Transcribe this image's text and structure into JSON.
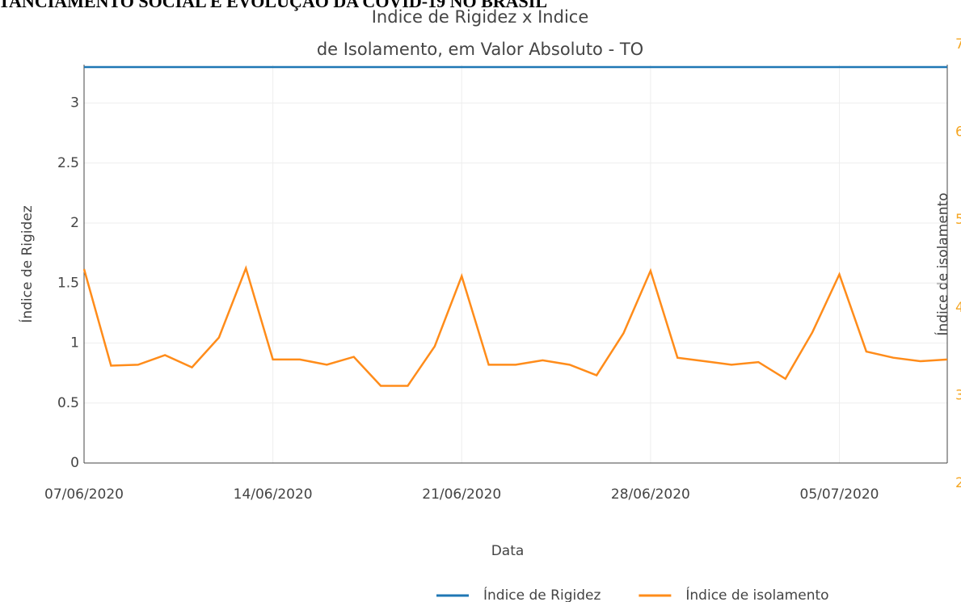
{
  "header": "TANCIAMENTO SOCIAL E EVOLUÇÃO DA COVID-19 NO BRASIL",
  "chart_data": {
    "type": "line",
    "title": [
      "Indice de Rigidez x Indice",
      "de Isolamento, em Valor Absoluto -  TO"
    ],
    "xlabel": "Data",
    "ylabel": "Índice de Rigidez",
    "y2label": "Índice de isolamento",
    "x": [
      "07/06/2020",
      "08/06/2020",
      "09/06/2020",
      "10/06/2020",
      "11/06/2020",
      "12/06/2020",
      "13/06/2020",
      "14/06/2020",
      "15/06/2020",
      "16/06/2020",
      "17/06/2020",
      "18/06/2020",
      "19/06/2020",
      "20/06/2020",
      "21/06/2020",
      "22/06/2020",
      "23/06/2020",
      "24/06/2020",
      "25/06/2020",
      "26/06/2020",
      "27/06/2020",
      "28/06/2020",
      "29/06/2020",
      "30/06/2020",
      "01/07/2020",
      "02/07/2020",
      "03/07/2020",
      "04/07/2020",
      "05/07/2020",
      "06/07/2020",
      "07/07/2020",
      "08/07/2020",
      "09/07/2020"
    ],
    "xticks": [
      "07/06/2020",
      "14/06/2020",
      "21/06/2020",
      "28/06/2020",
      "05/07/2020"
    ],
    "series": [
      {
        "name": "Índice de Rigidez",
        "color": "#1f77b4",
        "values": [
          3.3,
          3.3,
          3.3,
          3.3,
          3.3,
          3.3,
          3.3,
          3.3,
          3.3,
          3.3,
          3.3,
          3.3,
          3.3,
          3.3,
          3.3,
          3.3,
          3.3,
          3.3,
          3.3,
          3.3,
          3.3,
          3.3,
          3.3,
          3.3,
          3.3,
          3.3,
          3.3,
          3.3,
          3.3,
          3.3,
          3.3,
          3.3,
          3.3
        ]
      },
      {
        "name": "Índice de isolamento",
        "color": "#ff8c1a",
        "axis": "y2",
        "values": [
          4.44,
          3.34,
          3.35,
          3.46,
          3.32,
          3.66,
          4.45,
          3.41,
          3.41,
          3.35,
          3.44,
          3.11,
          3.11,
          3.56,
          4.36,
          3.35,
          3.35,
          3.4,
          3.35,
          3.23,
          3.71,
          4.42,
          3.43,
          3.39,
          3.35,
          3.38,
          3.19,
          3.72,
          4.38,
          3.5,
          3.43,
          3.39,
          3.41
        ]
      }
    ],
    "ylim": [
      0,
      3.32
    ],
    "yticks": [
      0,
      0.5,
      1,
      1.5,
      2,
      2.5,
      3
    ],
    "y2lim": [
      2.23,
      6.77
    ],
    "y2ticks": [
      2,
      3,
      4,
      5,
      6,
      7
    ],
    "y2tick_color": "#f5a623",
    "grid": true,
    "legend": "bottom-right"
  }
}
